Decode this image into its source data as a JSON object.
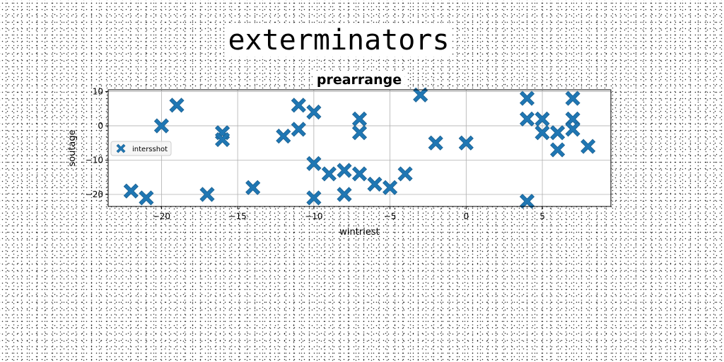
{
  "figure": {
    "suptitle": "exterminators"
  },
  "chart_data": {
    "type": "scatter",
    "title": "prearrange",
    "xlabel": "wintriest",
    "ylabel": "soutage",
    "xlim": [
      -23.5,
      9.5
    ],
    "ylim": [
      -23.5,
      10.5
    ],
    "xticks": [
      -20,
      -15,
      -10,
      -5,
      0,
      5
    ],
    "xtick_labels": [
      "−20",
      "−15",
      "−10",
      "−5",
      "0",
      "5"
    ],
    "yticks": [
      -20,
      -10,
      0,
      10
    ],
    "ytick_labels": [
      "−20",
      "−10",
      "0",
      "10"
    ],
    "grid": true,
    "legend_position": "center-left",
    "marker": "X",
    "color": "#1f77b4",
    "series": [
      {
        "name": "intersshot",
        "points": [
          [
            -22,
            -19
          ],
          [
            -21,
            -21
          ],
          [
            -20,
            0
          ],
          [
            -19,
            6
          ],
          [
            -17,
            -20
          ],
          [
            -16,
            -2
          ],
          [
            -16,
            -4
          ],
          [
            -14,
            -18
          ],
          [
            -12,
            -3
          ],
          [
            -11,
            6
          ],
          [
            -11,
            -1
          ],
          [
            -10,
            4
          ],
          [
            -10,
            -11
          ],
          [
            -10,
            -21
          ],
          [
            -9,
            -14
          ],
          [
            -8,
            -13
          ],
          [
            -8,
            -20
          ],
          [
            -7,
            2
          ],
          [
            -7,
            -2
          ],
          [
            -7,
            -14
          ],
          [
            -6,
            -17
          ],
          [
            -5,
            -18
          ],
          [
            -4,
            -14
          ],
          [
            -3,
            9
          ],
          [
            -2,
            -5
          ],
          [
            0,
            -5
          ],
          [
            4,
            8
          ],
          [
            4,
            2
          ],
          [
            4,
            -22
          ],
          [
            5,
            2
          ],
          [
            5,
            -2
          ],
          [
            6,
            -2
          ],
          [
            6,
            -7
          ],
          [
            7,
            8
          ],
          [
            7,
            2
          ],
          [
            7,
            -1
          ],
          [
            8,
            -6
          ]
        ]
      }
    ]
  }
}
